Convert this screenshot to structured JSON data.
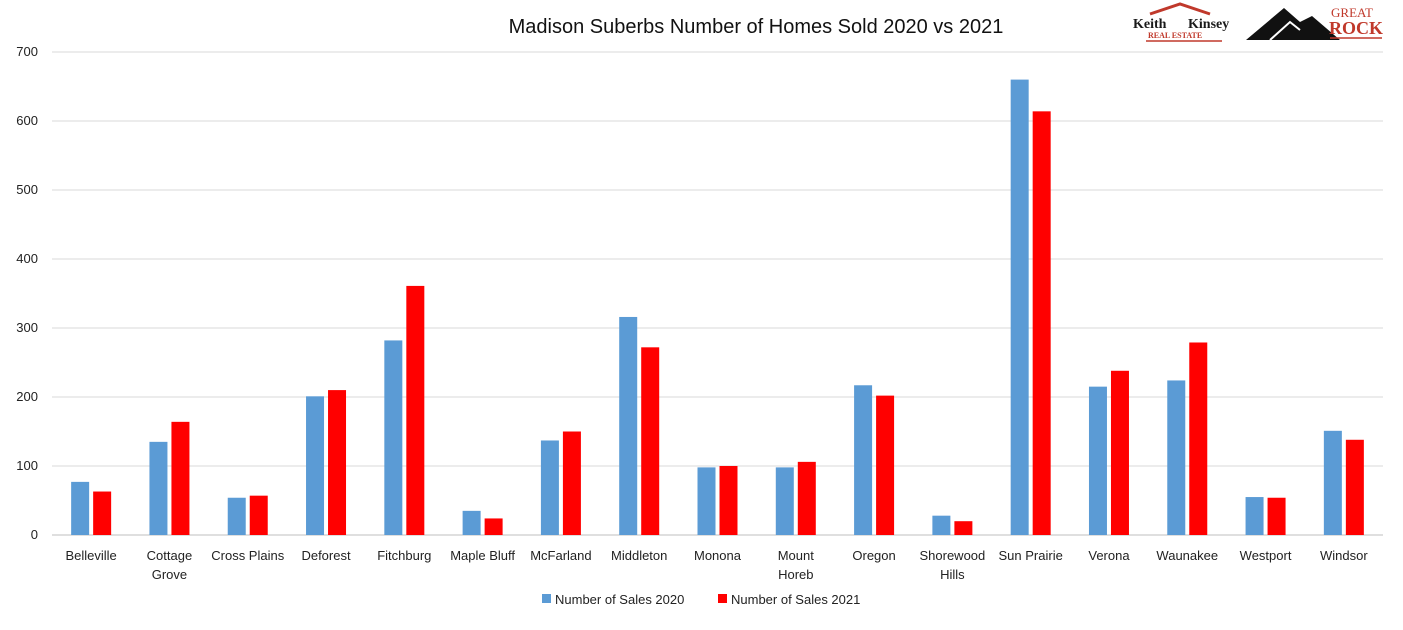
{
  "chart_data": {
    "type": "bar",
    "title": "Madison Suberbs Number of Homes Sold 2020 vs 2021",
    "xlabel": "",
    "ylabel": "",
    "ylim": [
      0,
      700
    ],
    "yticks": [
      0,
      100,
      200,
      300,
      400,
      500,
      600,
      700
    ],
    "grid": true,
    "legend_position": "bottom",
    "categories": [
      "Belleville",
      "Cottage Grove",
      "Cross Plains",
      "Deforest",
      "Fitchburg",
      "Maple Bluff",
      "McFarland",
      "Middleton",
      "Monona",
      "Mount Horeb",
      "Oregon",
      "Shorewood Hills",
      "Sun Prairie",
      "Verona",
      "Waunakee",
      "Westport",
      "Windsor"
    ],
    "category_lines": [
      [
        "Belleville"
      ],
      [
        "Cottage",
        "Grove"
      ],
      [
        "Cross Plains"
      ],
      [
        "Deforest"
      ],
      [
        "Fitchburg"
      ],
      [
        "Maple Bluff"
      ],
      [
        "McFarland"
      ],
      [
        "Middleton"
      ],
      [
        "Monona"
      ],
      [
        "Mount",
        "Horeb"
      ],
      [
        "Oregon"
      ],
      [
        "Shorewood",
        "Hills"
      ],
      [
        "Sun Prairie"
      ],
      [
        "Verona"
      ],
      [
        "Waunakee"
      ],
      [
        "Westport"
      ],
      [
        "Windsor"
      ]
    ],
    "series": [
      {
        "name": "Number of Sales 2020",
        "color": "#5b9bd5",
        "values": [
          77,
          135,
          54,
          201,
          282,
          35,
          137,
          316,
          98,
          98,
          217,
          28,
          660,
          215,
          224,
          55,
          151
        ]
      },
      {
        "name": "Number of Sales 2021",
        "color": "#ff0000",
        "values": [
          63,
          164,
          57,
          210,
          361,
          24,
          150,
          272,
          100,
          106,
          202,
          20,
          614,
          238,
          279,
          54,
          138
        ]
      }
    ]
  },
  "logos": {
    "left_text_1": "Keith",
    "left_text_2": "Kinsey",
    "left_text_3": "REAL ESTATE",
    "right_text_1": "GREAT",
    "right_text_2": "ROCK"
  },
  "colors": {
    "grid": "#d9d9d9",
    "axis": "#bfbfbf",
    "logo_red": "#c0392b"
  }
}
